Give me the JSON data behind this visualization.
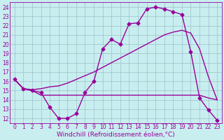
{
  "xlabel": "Windchill (Refroidissement éolien,°C)",
  "bg_color": "#c8eef0",
  "grid_color": "#9dbfca",
  "line_color": "#990099",
  "xlim": [
    -0.5,
    23.5
  ],
  "ylim": [
    11.5,
    24.5
  ],
  "xticks": [
    0,
    1,
    2,
    3,
    4,
    5,
    6,
    7,
    8,
    9,
    10,
    11,
    12,
    13,
    14,
    15,
    16,
    17,
    18,
    19,
    20,
    21,
    22,
    23
  ],
  "yticks": [
    12,
    13,
    14,
    15,
    16,
    17,
    18,
    19,
    20,
    21,
    22,
    23,
    24
  ],
  "line1_x": [
    0,
    1,
    2,
    3,
    4,
    5,
    6,
    7,
    8,
    9,
    10,
    11,
    12,
    13,
    14,
    15,
    16,
    17,
    18,
    19,
    20,
    21,
    22,
    23
  ],
  "line1_y": [
    16.2,
    15.2,
    15.0,
    14.8,
    13.2,
    12.0,
    12.0,
    12.5,
    14.8,
    16.0,
    19.5,
    20.5,
    20.0,
    22.2,
    22.3,
    23.8,
    24.0,
    23.8,
    23.5,
    23.2,
    19.2,
    14.2,
    12.9,
    11.8
  ],
  "line2_x": [
    0,
    1,
    2,
    3,
    4,
    5,
    6,
    7,
    8,
    9,
    10,
    11,
    12,
    13,
    14,
    15,
    16,
    17,
    18,
    19,
    20,
    21,
    22,
    23
  ],
  "line2_y": [
    16.2,
    15.2,
    15.0,
    14.5,
    14.5,
    14.5,
    14.5,
    14.5,
    14.5,
    14.5,
    14.5,
    14.5,
    14.5,
    14.5,
    14.5,
    14.5,
    14.5,
    14.5,
    14.5,
    14.5,
    14.5,
    14.5,
    14.2,
    14.0
  ],
  "line3_x": [
    0,
    1,
    2,
    3,
    4,
    5,
    6,
    7,
    8,
    9,
    10,
    11,
    12,
    13,
    14,
    15,
    16,
    17,
    18,
    19,
    20,
    21,
    22,
    23
  ],
  "line3_y": [
    16.2,
    15.2,
    15.1,
    15.2,
    15.4,
    15.5,
    15.8,
    16.2,
    16.6,
    17.0,
    17.5,
    18.0,
    18.5,
    19.0,
    19.5,
    20.0,
    20.5,
    21.0,
    21.3,
    21.5,
    21.2,
    19.5,
    16.5,
    14.0
  ],
  "marker": "D",
  "markersize": 2.5,
  "linewidth": 1.0,
  "tick_fontsize": 5.5,
  "xlabel_fontsize": 6.5
}
